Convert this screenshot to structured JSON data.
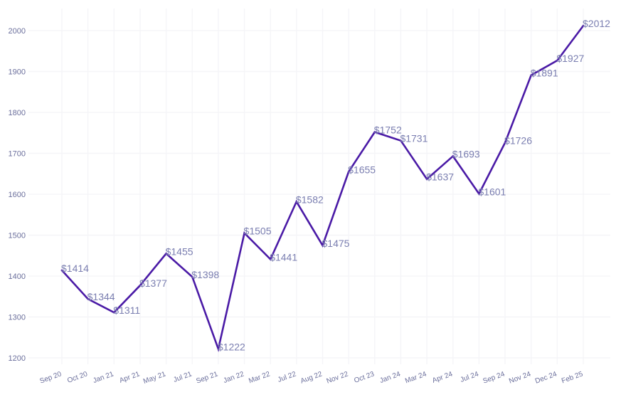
{
  "chart_data": {
    "type": "line",
    "categories": [
      "Sep 20",
      "Oct 20",
      "Jan 21",
      "Apr 21",
      "May 21",
      "Jul 21",
      "Sep 21",
      "Jan 22",
      "Mar 22",
      "Jul 22",
      "Aug 22",
      "Nov 22",
      "Oct 23",
      "Jan 24",
      "Mar 24",
      "Apr 24",
      "Jul 24",
      "Sep 24",
      "Nov 24",
      "Dec 24",
      "Feb 25"
    ],
    "series": [
      {
        "values": [
          1414,
          1344,
          1311,
          1377,
          1455,
          1398,
          1222,
          1505,
          1441,
          1582,
          1475,
          1655,
          1752,
          1731,
          1637,
          1693,
          1601,
          1726,
          1891,
          1927,
          2012
        ],
        "data_labels": [
          "$1414",
          "$1344",
          "$1311",
          "$1377",
          "$1455",
          "$1398",
          "$1222",
          "$1505",
          "$1441",
          "$1582",
          "$1475",
          "$1655",
          "$1752",
          "$1731",
          "$1637",
          "$1693",
          "$1601",
          "$1726",
          "$1891",
          "$1927",
          "$2012"
        ]
      }
    ],
    "title": "",
    "xlabel": "",
    "ylabel": "",
    "ylim": [
      1200,
      2000
    ],
    "yticks": [
      1200,
      1300,
      1400,
      1500,
      1600,
      1700,
      1800,
      1900,
      2000
    ],
    "grid": true,
    "legend": "none",
    "colors": {
      "line": "#4a1aa6",
      "label": "#7a7eb0",
      "tick": "#6b6f9c",
      "grid": "#f5f5f8"
    }
  }
}
